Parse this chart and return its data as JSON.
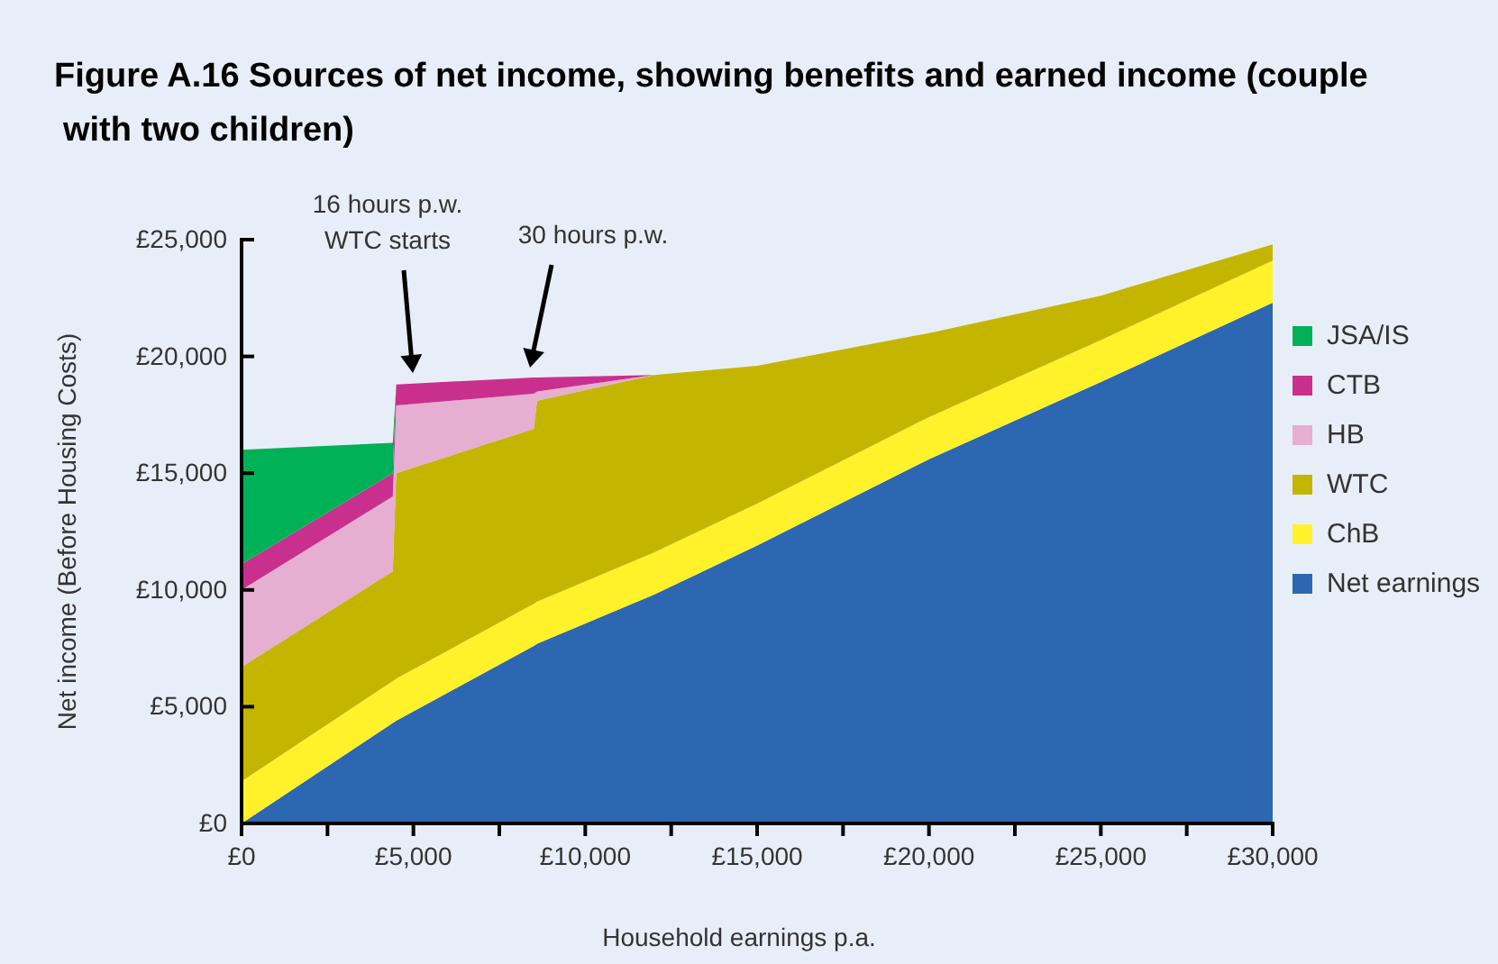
{
  "chart_data": {
    "type": "area",
    "stacked": true,
    "title": "Figure A.16 Sources of net income, showing benefits and earned income (couple with two children)",
    "xlabel": "Household earnings p.a.",
    "ylabel": "Net income (Before Housing Costs)",
    "x": [
      0,
      4400,
      4500,
      8500,
      8600,
      12000,
      15000,
      20000,
      25000,
      30000
    ],
    "series": [
      {
        "name": "Net earnings",
        "color": "#2e67b1",
        "values": [
          0,
          4300,
          4400,
          7600,
          7700,
          9800,
          11900,
          15600,
          18900,
          22300
        ]
      },
      {
        "name": "ChB",
        "color": "#fff22a",
        "values": [
          1800,
          1800,
          1800,
          1800,
          1800,
          1800,
          1800,
          1800,
          1800,
          1800
        ]
      },
      {
        "name": "WTC",
        "color": "#c4b600",
        "values": [
          4900,
          4700,
          8800,
          7500,
          8600,
          7600,
          5900,
          3600,
          1900,
          700
        ]
      },
      {
        "name": "HB",
        "color": "#e6aed0",
        "values": [
          3300,
          3200,
          2900,
          1500,
          400,
          0,
          0,
          0,
          0,
          0
        ]
      },
      {
        "name": "CTB",
        "color": "#c9308e",
        "values": [
          1100,
          1000,
          900,
          700,
          600,
          0,
          0,
          0,
          0,
          0
        ]
      },
      {
        "name": "JSA/IS",
        "color": "#00b158",
        "values": [
          4900,
          1300,
          0,
          0,
          0,
          0,
          0,
          0,
          0,
          0
        ]
      }
    ],
    "xlim": [
      0,
      30000
    ],
    "ylim": [
      0,
      25000
    ],
    "xticks": [
      {
        "value": 0,
        "label": "£0"
      },
      {
        "value": 2500,
        "label": null
      },
      {
        "value": 5000,
        "label": "£5,000"
      },
      {
        "value": 7500,
        "label": null
      },
      {
        "value": 10000,
        "label": "£10,000"
      },
      {
        "value": 12500,
        "label": null
      },
      {
        "value": 15000,
        "label": "£15,000"
      },
      {
        "value": 17500,
        "label": null
      },
      {
        "value": 20000,
        "label": "£20,000"
      },
      {
        "value": 22500,
        "label": null
      },
      {
        "value": 25000,
        "label": "£25,000"
      },
      {
        "value": 27500,
        "label": null
      },
      {
        "value": 30000,
        "label": "£30,000"
      }
    ],
    "yticks": [
      {
        "value": 0,
        "label": "£0"
      },
      {
        "value": 5000,
        "label": "£5,000"
      },
      {
        "value": 10000,
        "label": "£10,000"
      },
      {
        "value": 15000,
        "label": "£15,000"
      },
      {
        "value": 20000,
        "label": "£20,000"
      },
      {
        "value": 25000,
        "label": "£25,000"
      }
    ],
    "annotations": [
      "16 hours p.w.\nWTC starts",
      "30 hours p.w."
    ],
    "legend": "right",
    "grid": false
  }
}
